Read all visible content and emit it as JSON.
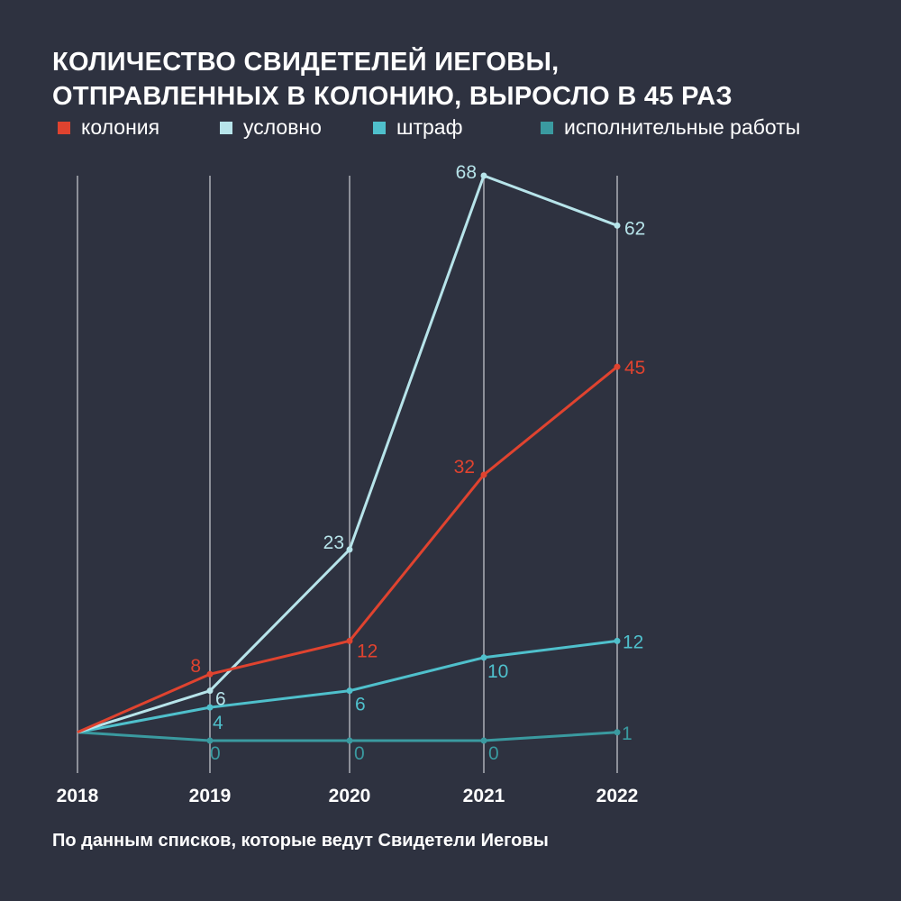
{
  "chart_data": {
    "type": "line",
    "title_lines": [
      "КОЛИЧЕСТВО СВИДЕТЕЛЕЙ ИЕГОВЫ,",
      "ОТПРАВЛЕННЫХ В КОЛОНИЮ, ВЫРОСЛО В 45 РАЗ"
    ],
    "x": [
      "2018",
      "2019",
      "2020",
      "2021",
      "2022"
    ],
    "series": [
      {
        "name": "колония",
        "color": "#e0432f",
        "values": [
          1,
          8,
          12,
          32,
          45
        ]
      },
      {
        "name": "условно",
        "color": "#b7e4ea",
        "values": [
          1,
          6,
          23,
          68,
          62
        ]
      },
      {
        "name": "штраф",
        "color": "#4fc0cc",
        "values": [
          1,
          4,
          6,
          10,
          12
        ]
      },
      {
        "name": "исполнительные работы",
        "color": "#3a9aa0",
        "values": [
          1,
          0,
          0,
          0,
          1
        ]
      }
    ],
    "labels": [
      {
        "series": 0,
        "index": 1,
        "text": "8"
      },
      {
        "series": 0,
        "index": 2,
        "text": "12"
      },
      {
        "series": 0,
        "index": 3,
        "text": "32"
      },
      {
        "series": 0,
        "index": 4,
        "text": "45"
      },
      {
        "series": 1,
        "index": 1,
        "text": "6"
      },
      {
        "series": 1,
        "index": 2,
        "text": "23"
      },
      {
        "series": 1,
        "index": 3,
        "text": "68"
      },
      {
        "series": 1,
        "index": 4,
        "text": "62"
      },
      {
        "series": 2,
        "index": 1,
        "text": "4"
      },
      {
        "series": 2,
        "index": 2,
        "text": "6"
      },
      {
        "series": 2,
        "index": 3,
        "text": "10"
      },
      {
        "series": 2,
        "index": 4,
        "text": "12"
      },
      {
        "series": 3,
        "index": 1,
        "text": "0"
      },
      {
        "series": 3,
        "index": 2,
        "text": "0"
      },
      {
        "series": 3,
        "index": 3,
        "text": "0"
      },
      {
        "series": 3,
        "index": 4,
        "text": "1"
      }
    ],
    "ylim": [
      0,
      68
    ],
    "grid": "vertical",
    "legend": "top"
  },
  "footnote": "По данным списков, которые ведут Свидетели Иеговы"
}
